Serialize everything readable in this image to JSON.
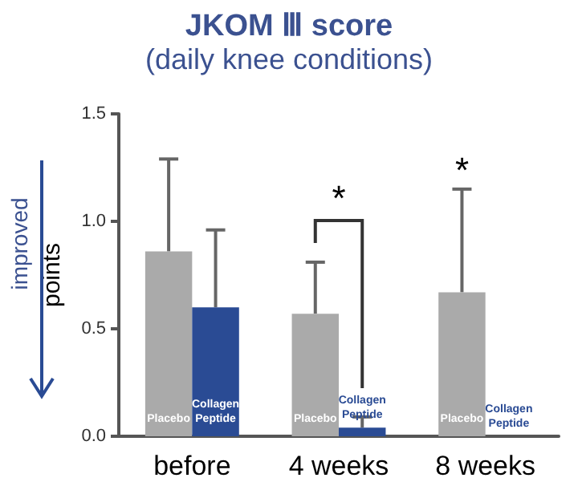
{
  "chart_data": {
    "type": "bar",
    "title": "JKOM Ⅲ score",
    "subtitle": "(daily knee conditions)",
    "ylabel": "points",
    "categories": [
      "before",
      "4 weeks",
      "8 weeks"
    ],
    "series": [
      {
        "name": "Placebo",
        "color": "#aaaaaa",
        "values": [
          0.86,
          0.57,
          0.67
        ],
        "errors": [
          [
            0.86,
            1.29
          ],
          [
            0.57,
            0.81
          ],
          [
            0.67,
            1.15
          ]
        ]
      },
      {
        "name": "Collagen Peptide",
        "color": "#2a4b94",
        "values": [
          0.6,
          0.04,
          0
        ],
        "errors": [
          [
            0.6,
            0.96
          ],
          [
            0.04,
            0.09
          ],
          null
        ]
      }
    ],
    "ylim": [
      0,
      1.5
    ],
    "yticks": [
      {
        "value": 0,
        "label": "0.0"
      },
      {
        "value": 0.5,
        "label": "0.5"
      },
      {
        "value": 1,
        "label": "1.0"
      },
      {
        "value": 1.5,
        "label": "1.5"
      }
    ],
    "annotations": [
      "*",
      "*",
      "improved"
    ],
    "grid": false,
    "legend": false
  }
}
